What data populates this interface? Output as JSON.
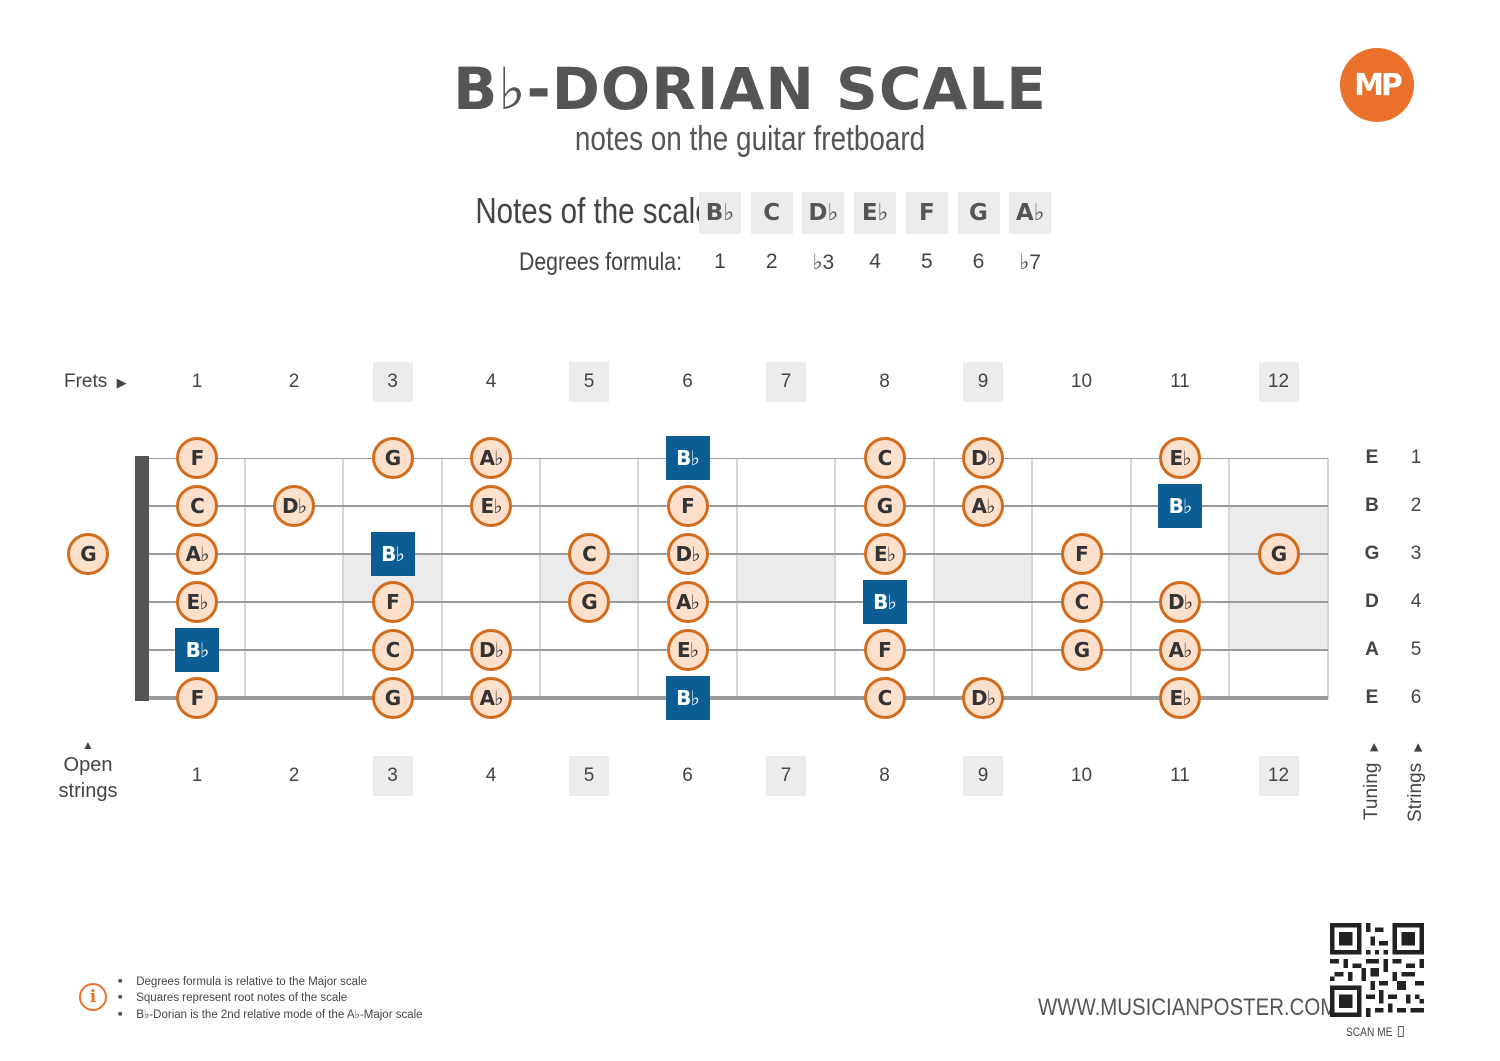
{
  "header": {
    "title": "B♭-DORIAN SCALE",
    "subtitle": "notes on the guitar fretboard",
    "logo": "MP"
  },
  "scale": {
    "notes_label": "Notes of the scale:",
    "degrees_label": "Degrees formula:",
    "notes": [
      "B♭",
      "C",
      "D♭",
      "E♭",
      "F",
      "G",
      "A♭"
    ],
    "degrees": [
      "1",
      "2",
      "♭3",
      "4",
      "5",
      "6",
      "♭7"
    ]
  },
  "fretboard": {
    "frets_label": "Frets",
    "open_label_1": "Open",
    "open_label_2": "strings",
    "fret_numbers": [
      "1",
      "2",
      "3",
      "4",
      "5",
      "6",
      "7",
      "8",
      "9",
      "10",
      "11",
      "12"
    ],
    "marker_frets": [
      3,
      5,
      7,
      9,
      12
    ],
    "tuning_label": "Tuning",
    "strings_label": "Strings",
    "strings": [
      {
        "number": "1",
        "tuning": "E",
        "notes": {
          "1": "F",
          "3": "G",
          "4": "A♭",
          "6": "B♭",
          "8": "C",
          "9": "D♭",
          "11": "E♭"
        }
      },
      {
        "number": "2",
        "tuning": "B",
        "notes": {
          "1": "C",
          "2": "D♭",
          "4": "E♭",
          "6": "F",
          "8": "G",
          "9": "A♭",
          "11": "B♭"
        }
      },
      {
        "number": "3",
        "tuning": "G",
        "notes": {
          "0": "G",
          "1": "A♭",
          "3": "B♭",
          "5": "C",
          "6": "D♭",
          "8": "E♭",
          "10": "F",
          "12": "G"
        }
      },
      {
        "number": "4",
        "tuning": "D",
        "notes": {
          "1": "E♭",
          "3": "F",
          "5": "G",
          "6": "A♭",
          "8": "B♭",
          "10": "C",
          "11": "D♭"
        }
      },
      {
        "number": "5",
        "tuning": "A",
        "notes": {
          "1": "B♭",
          "3": "C",
          "4": "D♭",
          "6": "E♭",
          "8": "F",
          "10": "G",
          "11": "A♭"
        }
      },
      {
        "number": "6",
        "tuning": "E",
        "notes": {
          "1": "F",
          "3": "G",
          "4": "A♭",
          "6": "B♭",
          "8": "C",
          "9": "D♭",
          "11": "E♭"
        }
      }
    ],
    "root_note": "B♭",
    "colors": {
      "root": "#0b5d93",
      "note_fill": "#fce0cc",
      "note_border": "#d26b1c",
      "accent": "#e9712b"
    }
  },
  "footer": {
    "info_icon": "info-icon",
    "notes": [
      "Degrees formula is relative to the Major scale",
      "Squares represent root notes of the scale",
      "B♭-Dorian is the 2nd relative mode of the A♭-Major scale"
    ],
    "website": "WWW.MUSICIANPOSTER.COM",
    "scan_me": "SCAN ME"
  }
}
